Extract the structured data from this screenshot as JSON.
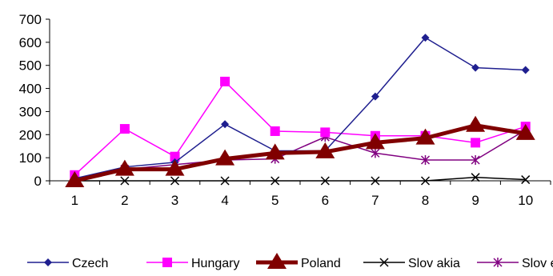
{
  "chart_data": {
    "type": "line",
    "categories": [
      "1",
      "2",
      "3",
      "4",
      "5",
      "6",
      "7",
      "8",
      "9",
      "10"
    ],
    "ylim": [
      0,
      700
    ],
    "y_ticks": [
      "0",
      "100",
      "200",
      "300",
      "400",
      "500",
      "600",
      "700"
    ],
    "grid": false,
    "legend_position": "bottom",
    "series": [
      {
        "name": "Czech",
        "color": "#1f1f8f",
        "marker": "diamond",
        "values": [
          10,
          60,
          80,
          245,
          130,
          130,
          365,
          620,
          490,
          480
        ]
      },
      {
        "name": "Hungary",
        "color": "#ff00ff",
        "marker": "square",
        "values": [
          25,
          225,
          105,
          430,
          215,
          210,
          195,
          195,
          165,
          235
        ]
      },
      {
        "name": "Poland",
        "color": "#800000",
        "marker": "triangle",
        "values": [
          0,
          50,
          50,
          95,
          120,
          125,
          165,
          185,
          240,
          205
        ]
      },
      {
        "name": "Slov akia",
        "color": "#000000",
        "marker": "x",
        "values": [
          0,
          0,
          0,
          0,
          0,
          0,
          0,
          0,
          15,
          5
        ]
      },
      {
        "name": "Slov enia",
        "color": "#800080",
        "marker": "star",
        "values": [
          10,
          50,
          70,
          90,
          95,
          190,
          120,
          90,
          90,
          220
        ]
      }
    ]
  }
}
